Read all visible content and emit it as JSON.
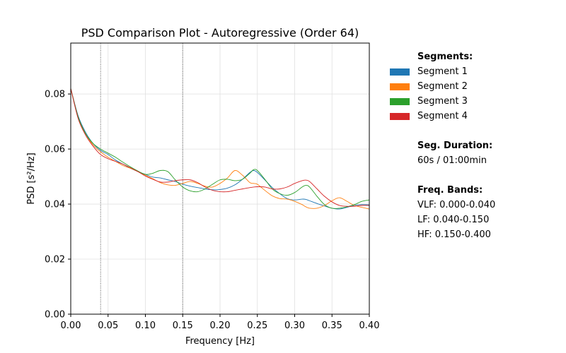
{
  "chart_data": {
    "type": "line",
    "title": "PSD Comparison Plot - Autoregressive (Order 64)",
    "xlabel": "Frequency [Hz]",
    "ylabel": "PSD [s²/Hz]",
    "xlim": [
      0.0,
      0.4
    ],
    "ylim": [
      0.0,
      0.0985
    ],
    "xticks": [
      "0.00",
      "0.05",
      "0.10",
      "0.15",
      "0.20",
      "0.25",
      "0.30",
      "0.35",
      "0.40"
    ],
    "yticks": [
      "0.00",
      "0.02",
      "0.04",
      "0.06",
      "0.08"
    ],
    "xtick_values": [
      0.0,
      0.05,
      0.1,
      0.15,
      0.2,
      0.25,
      0.3,
      0.35,
      0.4
    ],
    "ytick_values": [
      0.0,
      0.02,
      0.04,
      0.06,
      0.08
    ],
    "grid": true,
    "band_lines": [
      0.04,
      0.15
    ],
    "x": [
      0.0,
      0.01,
      0.02,
      0.03,
      0.04,
      0.05,
      0.06,
      0.07,
      0.08,
      0.09,
      0.1,
      0.11,
      0.12,
      0.13,
      0.14,
      0.15,
      0.16,
      0.17,
      0.18,
      0.19,
      0.2,
      0.21,
      0.22,
      0.23,
      0.24,
      0.245,
      0.25,
      0.26,
      0.27,
      0.28,
      0.29,
      0.3,
      0.31,
      0.315,
      0.32,
      0.33,
      0.34,
      0.35,
      0.36,
      0.37,
      0.38,
      0.39,
      0.4
    ],
    "series": [
      {
        "name": "Segment 1",
        "color": "#1f77b4",
        "values": [
          0.082,
          0.072,
          0.066,
          0.062,
          0.0595,
          0.058,
          0.056,
          0.0545,
          0.053,
          0.0518,
          0.0508,
          0.0498,
          0.0495,
          0.0488,
          0.0482,
          0.0472,
          0.0465,
          0.046,
          0.0455,
          0.0452,
          0.0453,
          0.0458,
          0.047,
          0.049,
          0.0515,
          0.0522,
          0.0515,
          0.0488,
          0.046,
          0.0438,
          0.042,
          0.0415,
          0.0418,
          0.0417,
          0.0412,
          0.0402,
          0.0393,
          0.0385,
          0.0382,
          0.0388,
          0.0395,
          0.0398,
          0.0397
        ]
      },
      {
        "name": "Segment 2",
        "color": "#ff7f0e",
        "values": [
          0.082,
          0.0715,
          0.0655,
          0.0615,
          0.059,
          0.057,
          0.0555,
          0.054,
          0.053,
          0.0518,
          0.0505,
          0.0492,
          0.0478,
          0.047,
          0.0468,
          0.0475,
          0.0482,
          0.0475,
          0.0465,
          0.0462,
          0.0475,
          0.0495,
          0.0522,
          0.0505,
          0.0478,
          0.0475,
          0.0472,
          0.045,
          0.043,
          0.042,
          0.0418,
          0.041,
          0.0398,
          0.039,
          0.0385,
          0.0385,
          0.0395,
          0.0412,
          0.0423,
          0.041,
          0.0395,
          0.0388,
          0.0382
        ]
      },
      {
        "name": "Segment 3",
        "color": "#2ca02c",
        "values": [
          0.082,
          0.0715,
          0.0655,
          0.062,
          0.06,
          0.0585,
          0.057,
          0.0552,
          0.0535,
          0.052,
          0.0508,
          0.0512,
          0.0522,
          0.0518,
          0.0488,
          0.0462,
          0.0448,
          0.0445,
          0.0455,
          0.0472,
          0.0488,
          0.049,
          0.0485,
          0.049,
          0.0512,
          0.0525,
          0.0522,
          0.049,
          0.0455,
          0.0438,
          0.0432,
          0.0442,
          0.0462,
          0.0468,
          0.0462,
          0.0428,
          0.0398,
          0.0385,
          0.0385,
          0.039,
          0.0398,
          0.041,
          0.0415
        ]
      },
      {
        "name": "Segment 4",
        "color": "#d62728",
        "values": [
          0.082,
          0.071,
          0.065,
          0.061,
          0.058,
          0.0565,
          0.0555,
          0.0545,
          0.0532,
          0.0518,
          0.0502,
          0.049,
          0.048,
          0.048,
          0.0485,
          0.0488,
          0.0488,
          0.0478,
          0.0462,
          0.045,
          0.0445,
          0.0445,
          0.045,
          0.0455,
          0.046,
          0.0462,
          0.0463,
          0.0462,
          0.0455,
          0.0455,
          0.0462,
          0.0475,
          0.0485,
          0.0487,
          0.0482,
          0.0455,
          0.0428,
          0.0408,
          0.0395,
          0.0392,
          0.0392,
          0.0395,
          0.0395
        ]
      }
    ]
  },
  "legend": {
    "segments_header": "Segments:",
    "items": [
      {
        "label": "Segment 1",
        "color": "#1f77b4"
      },
      {
        "label": "Segment 2",
        "color": "#ff7f0e"
      },
      {
        "label": "Segment 3",
        "color": "#2ca02c"
      },
      {
        "label": "Segment 4",
        "color": "#d62728"
      }
    ],
    "duration_header": "Seg. Duration:",
    "duration_value": "60s / 01:00min",
    "bands_header": "Freq. Bands:",
    "bands": [
      "VLF: 0.000-0.040",
      "LF: 0.040-0.150",
      "HF: 0.150-0.400"
    ]
  }
}
